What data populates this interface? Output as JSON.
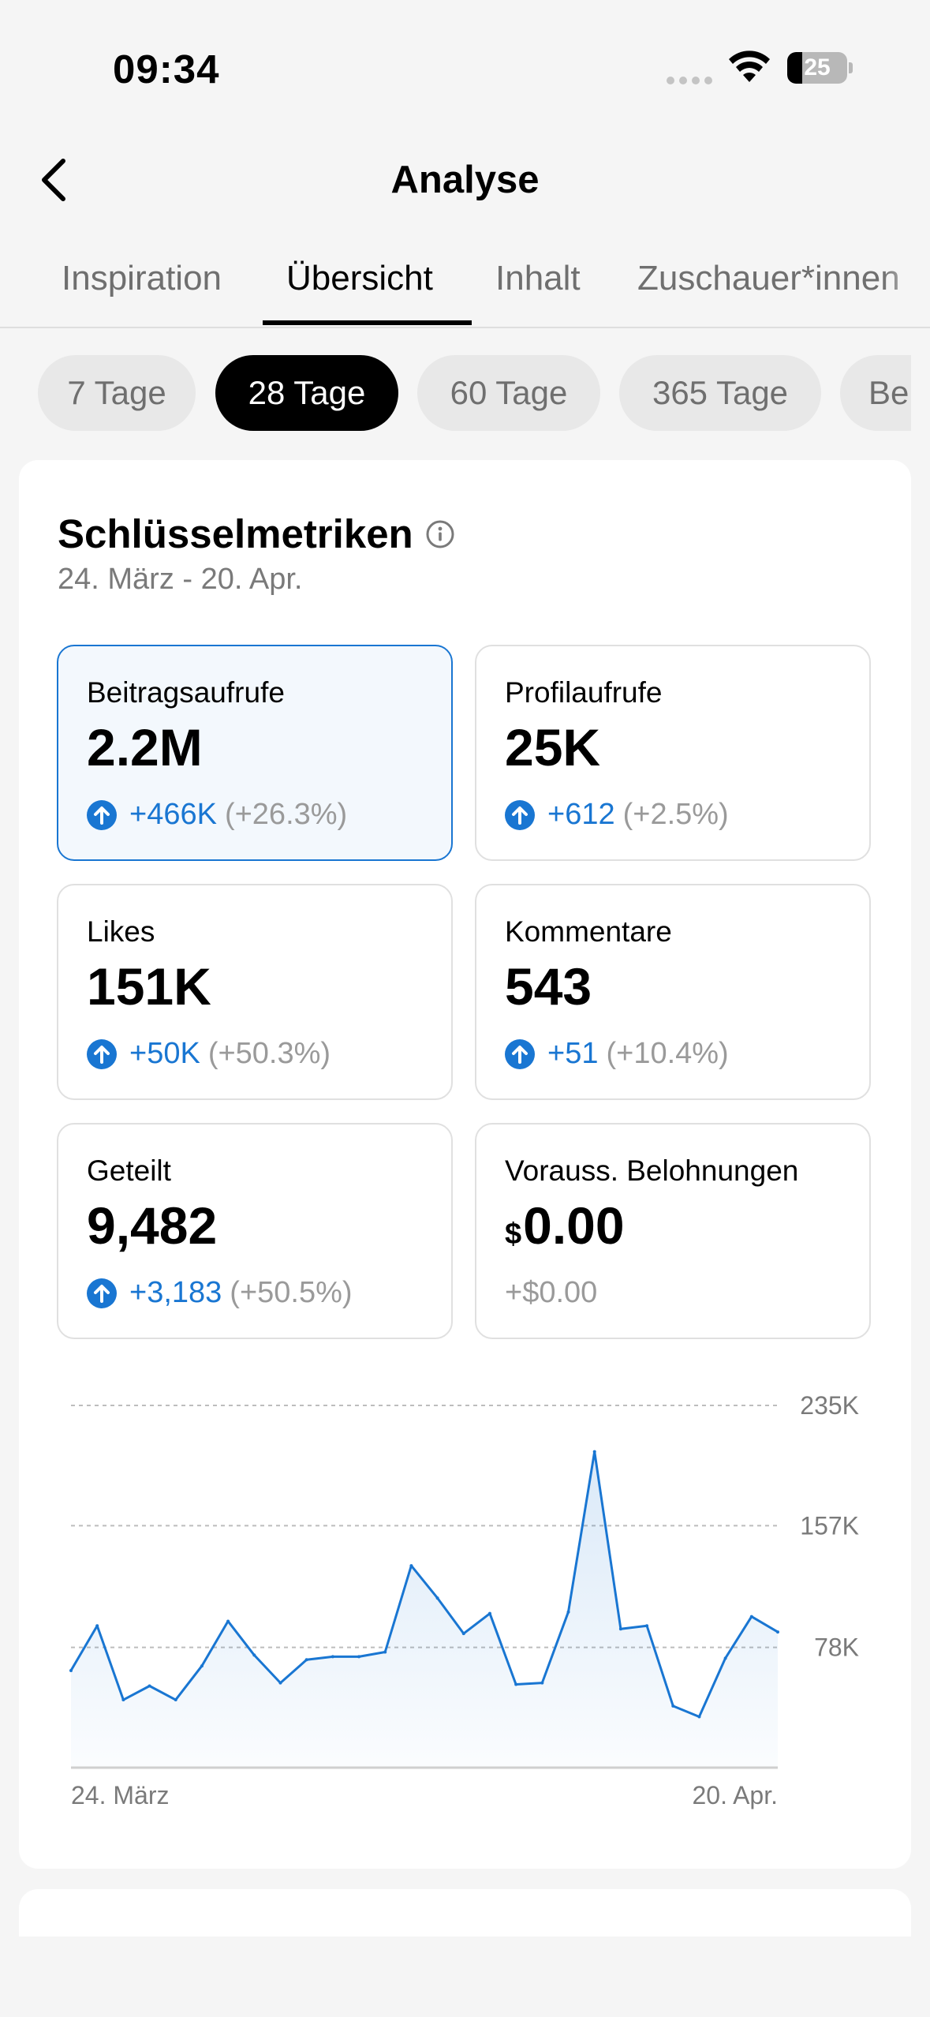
{
  "status_bar": {
    "time": "09:34",
    "battery": "25"
  },
  "nav": {
    "title": "Analyse"
  },
  "tabs": [
    {
      "label": "Inspiration",
      "active": false
    },
    {
      "label": "Übersicht",
      "active": true
    },
    {
      "label": "Inhalt",
      "active": false
    },
    {
      "label": "Zuschauer*innen",
      "active": false
    }
  ],
  "ranges": [
    "7 Tage",
    "28 Tage",
    "60 Tage",
    "365 Tage",
    "Benutzerdefiniert"
  ],
  "selected_range": "28 Tage",
  "key_metrics": {
    "title": "Schlüsselmetriken",
    "date_range": "24. März - 20. Apr.",
    "cards": [
      {
        "label": "Beitragsaufrufe",
        "value": "2.2M",
        "delta": "+466K",
        "delta_pct": "(+26.3%)",
        "selected": true
      },
      {
        "label": "Profilaufrufe",
        "value": "25K",
        "delta": "+612",
        "delta_pct": "(+2.5%)"
      },
      {
        "label": "Likes",
        "value": "151K",
        "delta": "+50K",
        "delta_pct": "(+50.3%)"
      },
      {
        "label": "Kommentare",
        "value": "543",
        "delta": "+51",
        "delta_pct": "(+10.4%)"
      },
      {
        "label": "Geteilt",
        "value": "9,482",
        "delta": "+3,183",
        "delta_pct": "(+50.5%)"
      },
      {
        "label": "Vorauss. Belohnungen",
        "currency": "$",
        "value": "0.00",
        "delta_flat": "+$0.00"
      }
    ]
  },
  "chart_data": {
    "type": "area",
    "title": "",
    "xlabel": "",
    "ylabel": "",
    "x_start_label": "24. März",
    "x_end_label": "20. Apr.",
    "ytick_labels": [
      "235K",
      "157K",
      "78K"
    ],
    "yticks": [
      235,
      157,
      78
    ],
    "ylim": [
      0,
      235
    ],
    "grid": true,
    "color": "#1976d2",
    "values": [
      63,
      92,
      44,
      53,
      44,
      66,
      95,
      73,
      55,
      70,
      72,
      72,
      75,
      131,
      110,
      87,
      100,
      54,
      55,
      101,
      205,
      90,
      92,
      40,
      33,
      71,
      98,
      88
    ]
  }
}
